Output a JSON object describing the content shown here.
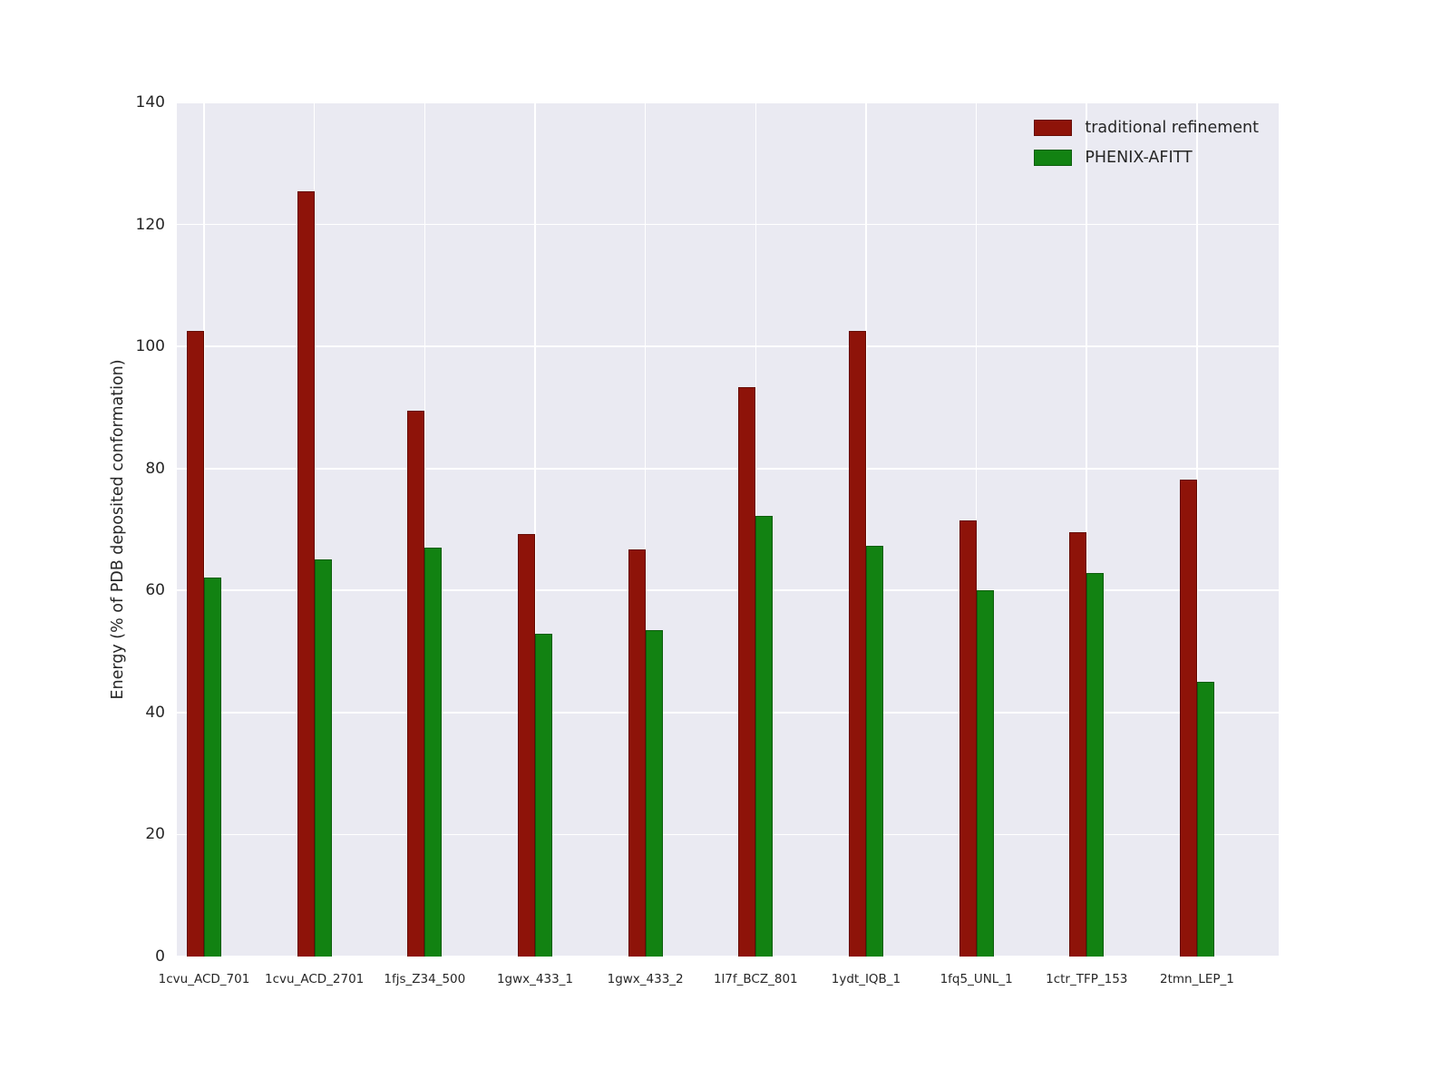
{
  "chart_data": {
    "type": "bar",
    "categories": [
      "1cvu_ACD_701",
      "1cvu_ACD_2701",
      "1fjs_Z34_500",
      "1gwx_433_1",
      "1gwx_433_2",
      "1l7f_BCZ_801",
      "1ydt_IQB_1",
      "1fq5_UNL_1",
      "1ctr_TFP_153",
      "2tmn_LEP_1"
    ],
    "series": [
      {
        "name": "traditional refinement",
        "color": "#8e1309",
        "values": [
          102.5,
          125.5,
          89.4,
          69.3,
          66.7,
          93.4,
          102.5,
          71.5,
          69.6,
          78.2
        ]
      },
      {
        "name": "PHENIX-AFITT",
        "color": "#128212",
        "values": [
          62.1,
          65.1,
          67.0,
          52.9,
          53.5,
          72.3,
          67.3,
          60.1,
          62.9,
          45.1
        ]
      }
    ],
    "title": "",
    "xlabel": "",
    "ylabel": "Energy (% of PDB deposited conformation)",
    "ylim": [
      0,
      140
    ],
    "yticks": [
      0,
      20,
      40,
      60,
      80,
      100,
      120,
      140
    ],
    "grid": true,
    "legend_position": "upper right",
    "plot_background": "#eaeaf2",
    "gridline_color": "#ffffff"
  }
}
